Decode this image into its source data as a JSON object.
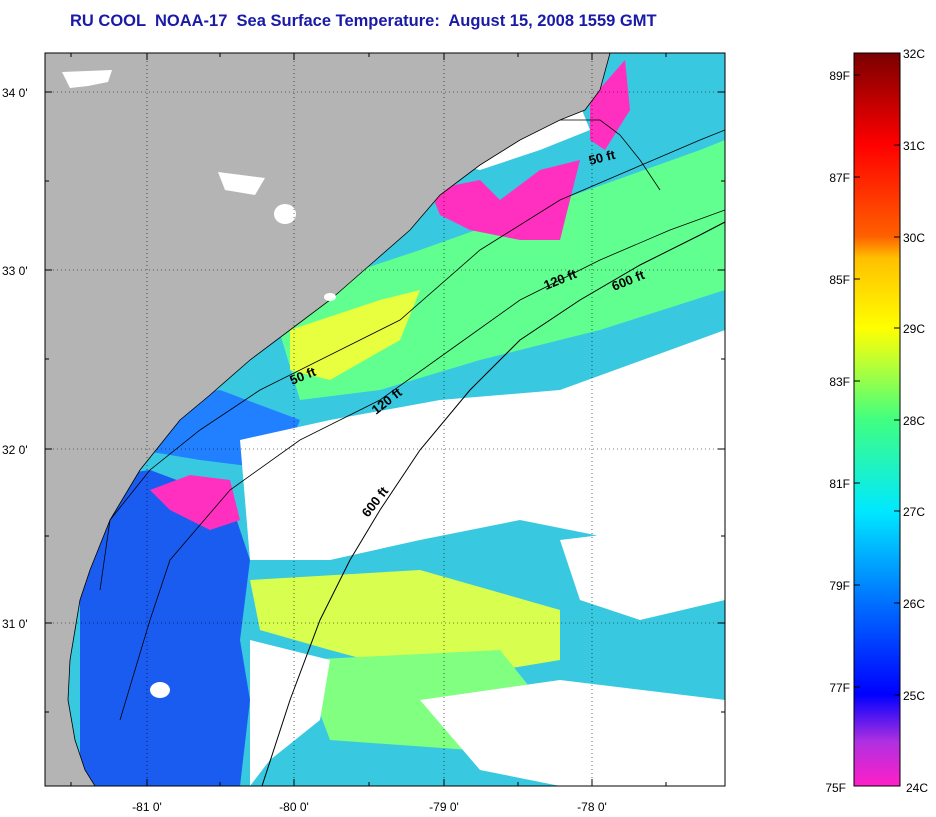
{
  "title": "RU COOL  NOAA-17  Sea Surface Temperature:  August 15, 2008 1559 GMT",
  "map": {
    "lat_labels": [
      "34 0'",
      "33 0'",
      "32 0'",
      "31 0'"
    ],
    "lon_labels": [
      "-81 0'",
      "-80 0'",
      "-79 0'",
      "-78 0'"
    ],
    "isobath_labels": [
      "50 ft",
      "120 ft",
      "600 ft",
      "50 ft",
      "120 ft",
      "600 ft"
    ],
    "colors": {
      "land": "#b4b4b4",
      "cloud": "#ffffff",
      "frame": "#000000"
    }
  },
  "colorbar": {
    "fahrenheit_labels": [
      "89F",
      "87F",
      "85F",
      "83F",
      "81F",
      "79F",
      "77F",
      "75F"
    ],
    "celsius_labels": [
      "32C",
      "31C",
      "30C",
      "29C",
      "28C",
      "27C",
      "26C",
      "25C",
      "24C"
    ],
    "scale_colors": [
      "#ff1fc8",
      "#b030e0",
      "#0000ff",
      "#0070ff",
      "#00e8ff",
      "#40ff80",
      "#c0ff30",
      "#ffff00",
      "#ffc000",
      "#ff6000",
      "#ff0000",
      "#7a0000"
    ]
  }
}
